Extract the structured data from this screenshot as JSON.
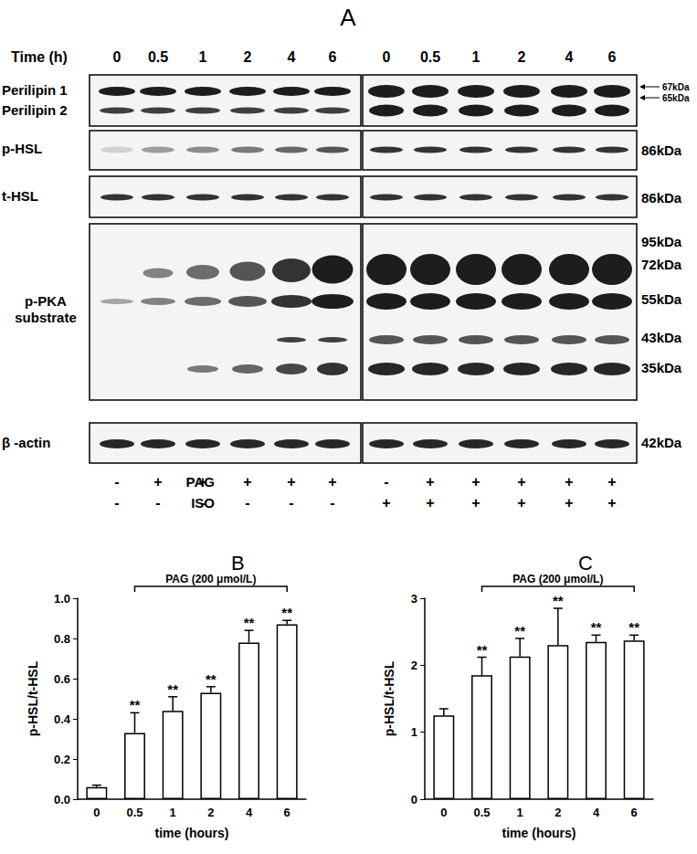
{
  "blot": {
    "panel_label": "A",
    "time_label": "Time (h)",
    "times": [
      "0",
      "0.5",
      "1",
      "2",
      "4",
      "6",
      "0",
      "0.5",
      "1",
      "2",
      "4",
      "6"
    ],
    "rows": [
      {
        "labels": [
          "Perilipin 1",
          "Perilipin 2"
        ],
        "mw": [
          "67kDa",
          "65kDa"
        ]
      },
      {
        "labels": [
          "p-HSL"
        ],
        "mw": [
          "86kDa"
        ]
      },
      {
        "labels": [
          "t-HSL"
        ],
        "mw": [
          "86kDa"
        ]
      },
      {
        "labels": [
          "p-PKA",
          "substrate"
        ],
        "mw": [
          "95kDa",
          "72kDa",
          "55kDa",
          "43kDa",
          "35kDa"
        ]
      },
      {
        "labels": [
          "β -actin"
        ],
        "mw": [
          "42kDa"
        ]
      }
    ],
    "treatments": [
      {
        "label": "PAG",
        "signs": [
          "-",
          "+",
          "+",
          "+",
          "+",
          "+",
          "-",
          "+",
          "+",
          "+",
          "+",
          "+"
        ]
      },
      {
        "label": "ISO",
        "signs": [
          "-",
          "-",
          "-",
          "-",
          "-",
          "-",
          "+",
          "+",
          "+",
          "+",
          "+",
          "+"
        ]
      }
    ]
  },
  "chart_data": [
    {
      "type": "bar",
      "title": "B",
      "categories": [
        "0",
        "0.5",
        "1",
        "2",
        "4",
        "6"
      ],
      "values": [
        0.06,
        0.33,
        0.44,
        0.53,
        0.78,
        0.87
      ],
      "errors": [
        0.01,
        0.1,
        0.07,
        0.03,
        0.06,
        0.02
      ],
      "annotations": [
        null,
        "**",
        "**",
        "**",
        "**",
        "**"
      ],
      "bracket": {
        "text": "PAG (200 μmol/L)",
        "from": "0.5",
        "to": "6"
      },
      "x_label": "time (hours)",
      "y_label": "p-HSL/t-HSL",
      "ylim": [
        0,
        1
      ],
      "yticks": [
        {
          "value": 0,
          "label": "0.0"
        },
        0.2,
        0.4,
        0.6,
        0.8,
        {
          "value": 1,
          "label": "1.0"
        }
      ],
      "color": "#ffffff",
      "grid": false
    },
    {
      "type": "bar",
      "title": "C",
      "categories": [
        "0",
        "0.5",
        "1",
        "2",
        "4",
        "6"
      ],
      "values": [
        1.25,
        1.85,
        2.13,
        2.3,
        2.35,
        2.37
      ],
      "errors": [
        0.1,
        0.27,
        0.27,
        0.55,
        0.1,
        0.08
      ],
      "annotations": [
        null,
        "**",
        "**",
        "**",
        "**",
        "**"
      ],
      "bracket": {
        "text": "PAG (200 μmol/L)",
        "from": "0.5",
        "to": "6"
      },
      "x_label": "time (hours)",
      "y_label": "p-HSL/t-HSL",
      "ylim": [
        0,
        3
      ],
      "yticks": [
        0,
        1,
        2,
        3
      ],
      "color": "#ffffff",
      "grid": false
    }
  ]
}
